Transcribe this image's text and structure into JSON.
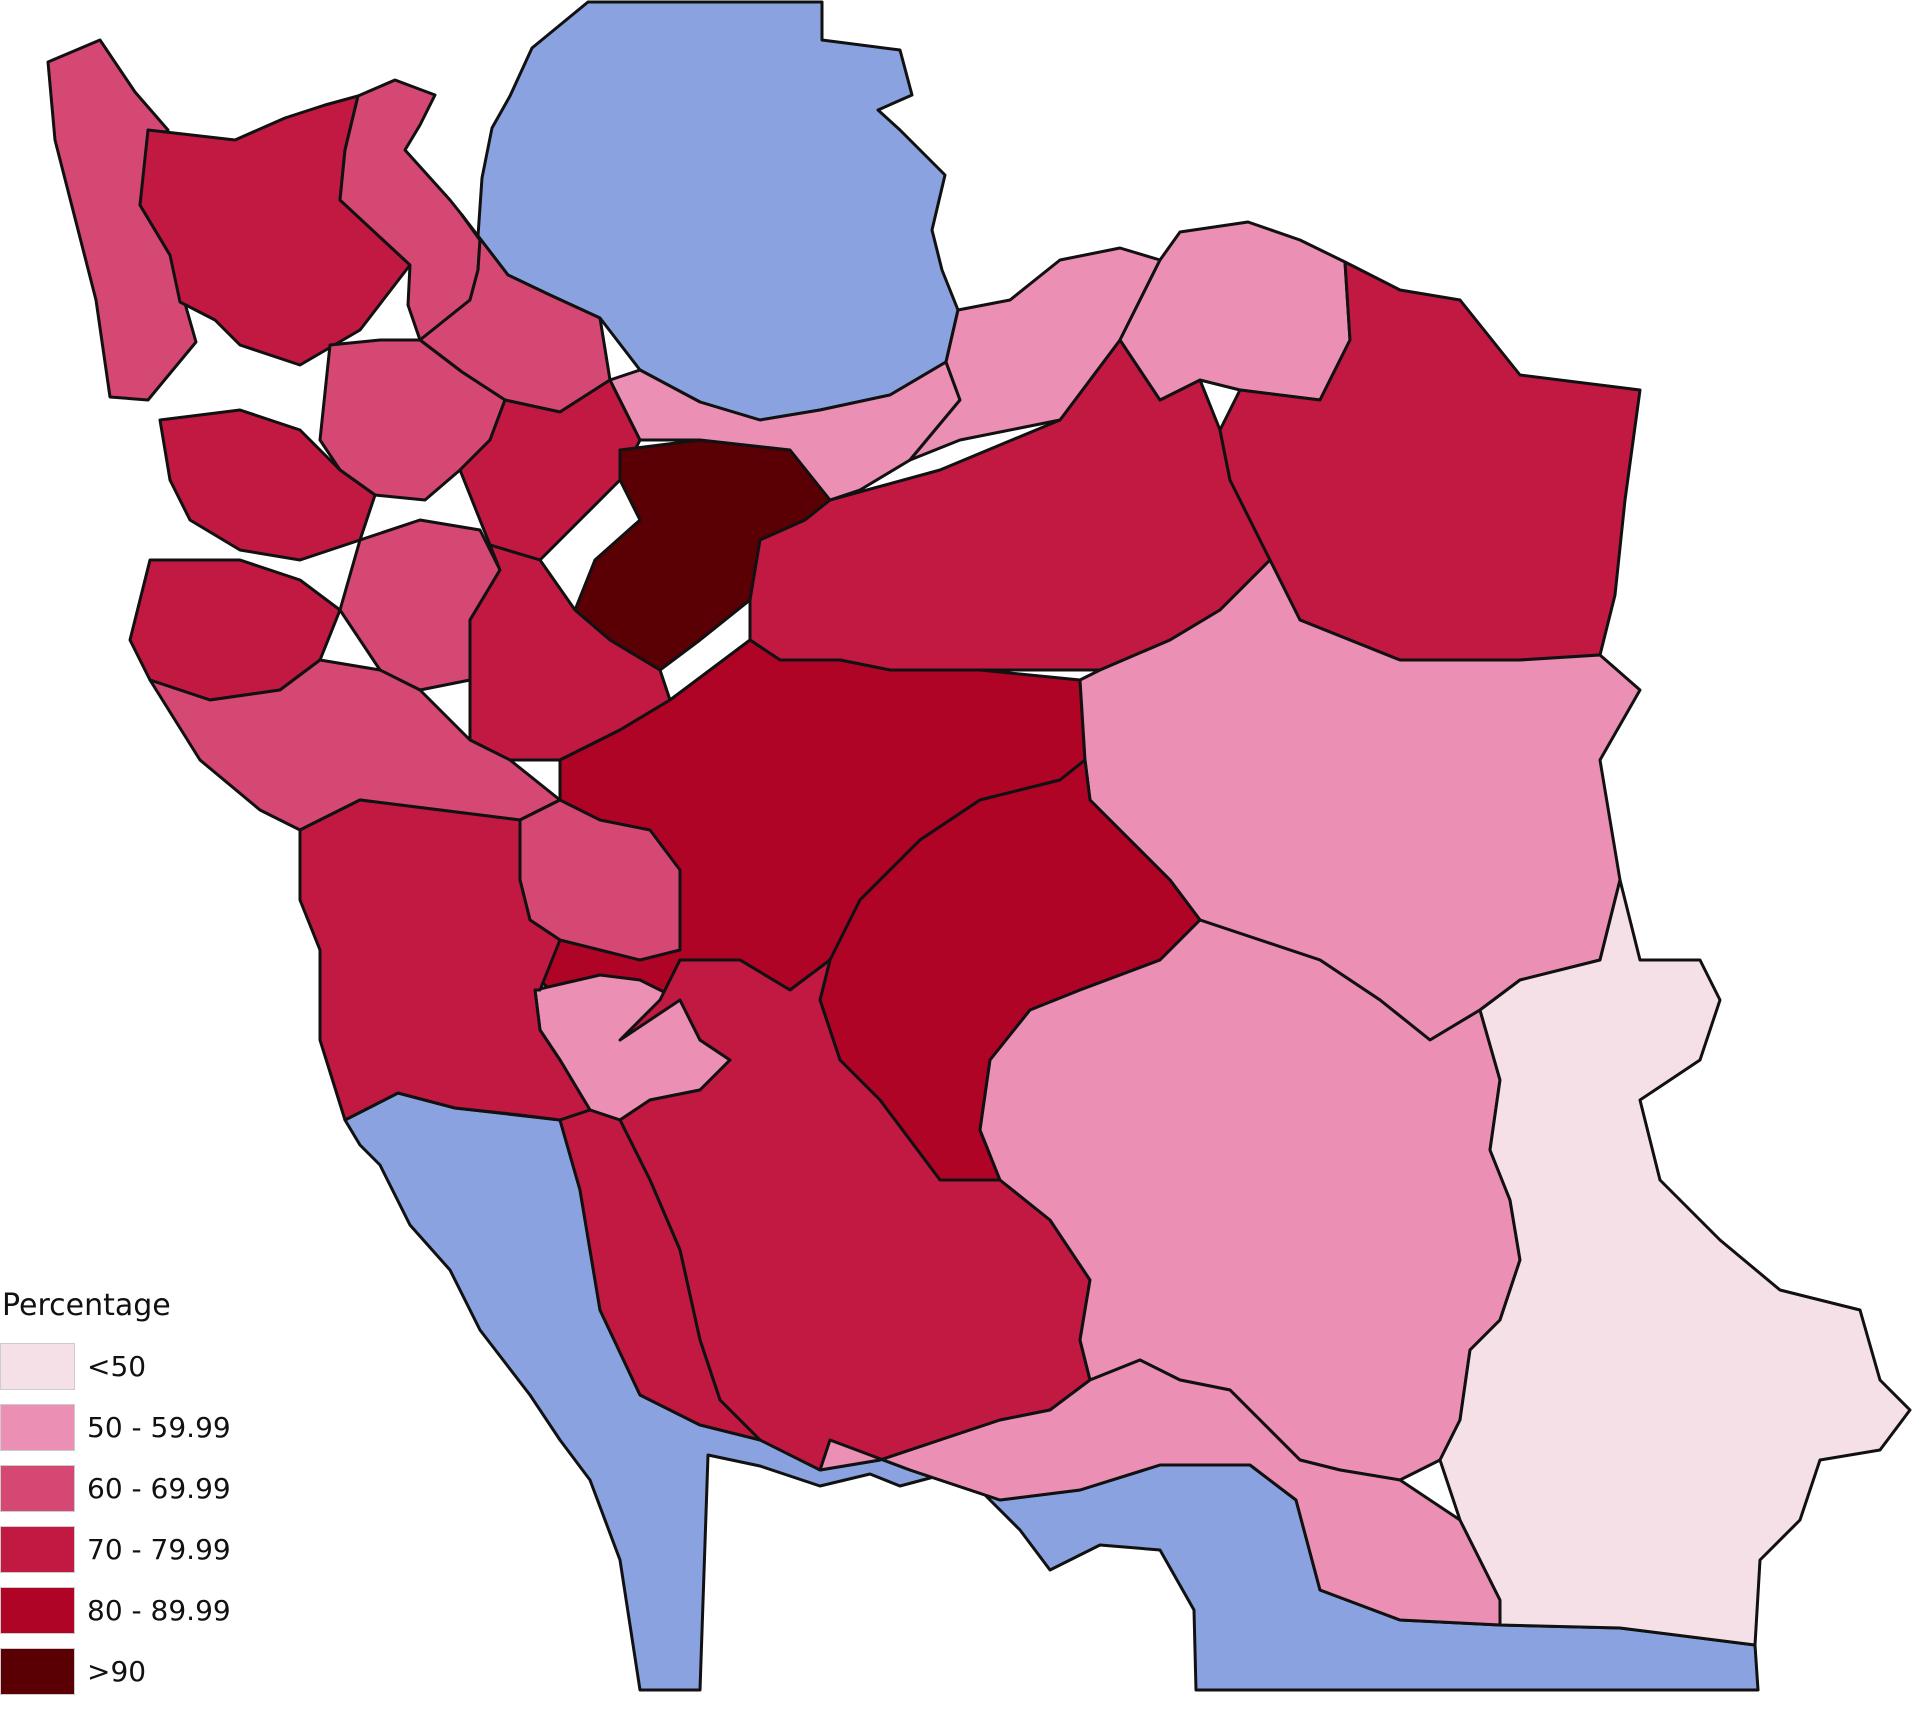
{
  "colors": {
    "water": "#8aa3e0",
    "lt50": "#f5e0e7",
    "c50_59": "#eb8fb4",
    "c60_69": "#d44873",
    "c70_79": "#c21943",
    "c80_89": "#b00427",
    "gt90": "#5a0004"
  },
  "legend": {
    "title": "Percentage",
    "items": [
      {
        "label": "<50",
        "color": "#f5e0e7"
      },
      {
        "label": "50 - 59.99",
        "color": "#eb8fb4"
      },
      {
        "label": "60 - 69.99",
        "color": "#d44873"
      },
      {
        "label": "70 - 79.99",
        "color": "#c21943"
      },
      {
        "label": "80 - 89.99",
        "color": "#b00427"
      },
      {
        "label": ">90",
        "color": "#5a0004"
      }
    ]
  }
}
